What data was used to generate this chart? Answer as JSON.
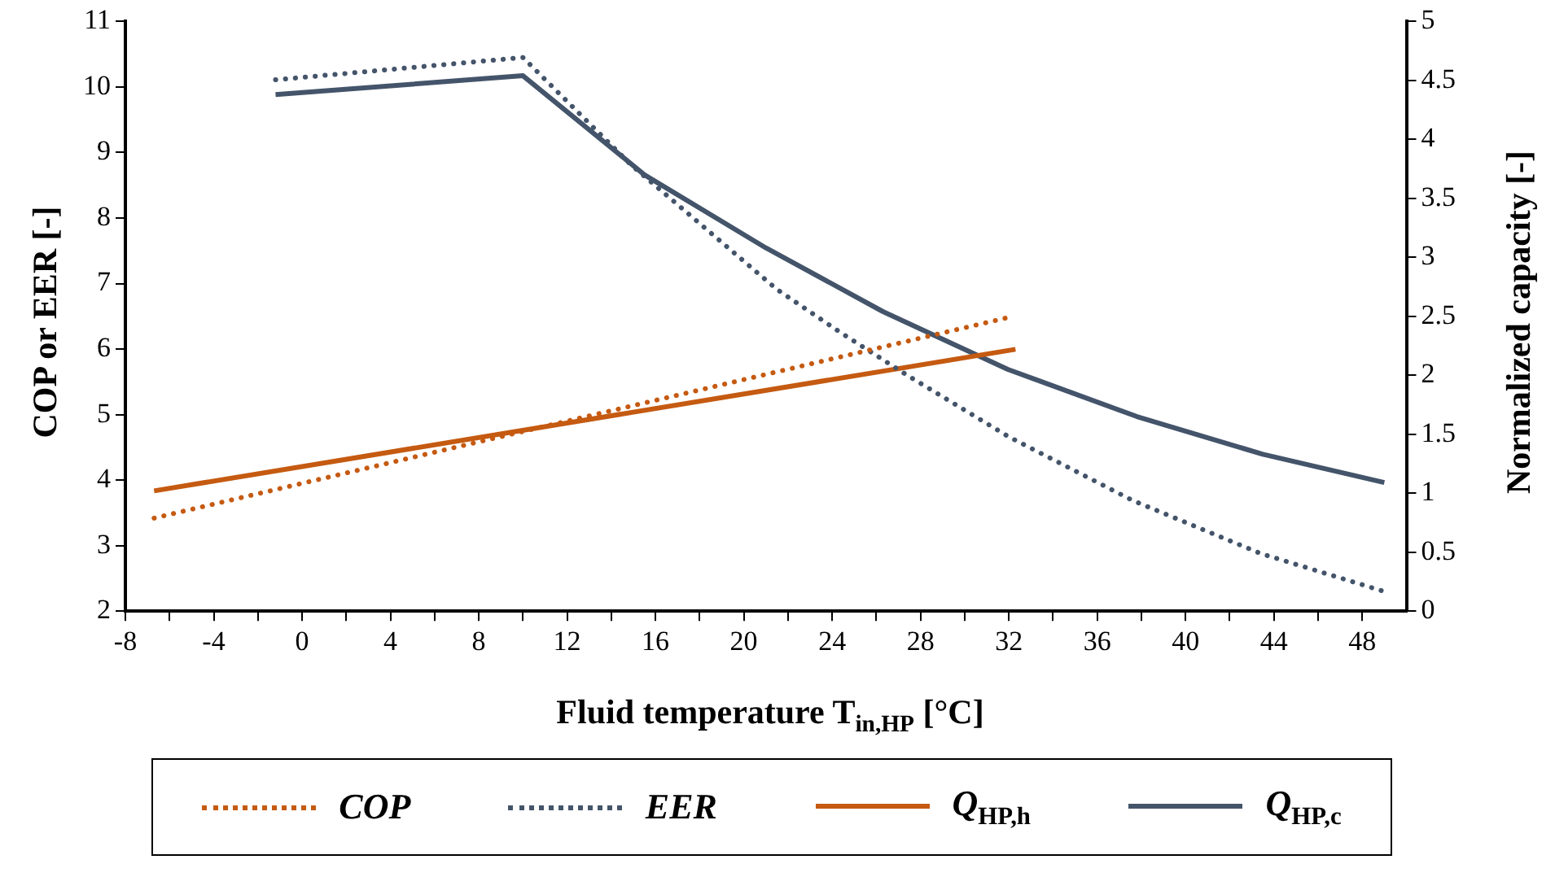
{
  "chart_data": {
    "type": "line",
    "xlabel": "Fluid temperature  T$_{in,HP}$  [°C]",
    "ylabel": "COP or EER [-]",
    "y2label": "Normalized capacity [-]",
    "xlim": [
      -8,
      50
    ],
    "xticks": [
      -8,
      {
        "value": -6,
        "label": null
      },
      -4,
      {
        "value": -2,
        "label": null
      },
      0,
      {
        "value": 2,
        "label": null
      },
      4,
      {
        "value": 6,
        "label": null
      },
      8,
      {
        "value": 10,
        "label": null
      },
      12,
      {
        "value": 14,
        "label": null
      },
      16,
      {
        "value": 18,
        "label": null
      },
      20,
      {
        "value": 22,
        "label": null
      },
      24,
      {
        "value": 26,
        "label": null
      },
      28,
      {
        "value": 30,
        "label": null
      },
      32,
      {
        "value": 34,
        "label": null
      },
      36,
      {
        "value": 38,
        "label": null
      },
      40,
      {
        "value": 42,
        "label": null
      },
      44,
      {
        "value": 46,
        "label": null
      },
      48
    ],
    "ylim": [
      2,
      11
    ],
    "yticks": [
      2,
      3,
      4,
      5,
      6,
      7,
      8,
      9,
      10,
      11
    ],
    "y2lim": [
      0,
      5
    ],
    "y2ticks": [
      0,
      0.5,
      1,
      1.5,
      2,
      2.5,
      3,
      3.5,
      4,
      4.5,
      5
    ],
    "grid": false,
    "legend": "bottom",
    "marker": "none",
    "series": [
      {
        "name": "COP",
        "color": "#c55a11",
        "line_style": "dotted",
        "x": [
          -6.7,
          32.2
        ],
        "values": [
          3.42,
          6.5
        ]
      },
      {
        "name": "EER",
        "color": "#44546a",
        "line_style": "dotted",
        "x": [
          -1.2,
          10,
          14.9,
          21.5,
          24.3,
          27.4,
          32,
          37.6,
          43.4,
          48.9
        ],
        "values": [
          10.11,
          10.45,
          8.81,
          6.91,
          6.27,
          5.6,
          4.66,
          3.69,
          2.88,
          2.31
        ]
      },
      {
        "name": "Q$_{HP,h}$",
        "color": "#c55a11",
        "line_style": "solid",
        "axis": "y2",
        "x": [
          -6.7,
          32.3
        ],
        "values": [
          1.02,
          2.22
        ]
      },
      {
        "name": "Q$_{HP,c}$",
        "color": "#44546a",
        "line_style": "solid",
        "axis": "y2",
        "x": [
          -1.2,
          10,
          15.5,
          21,
          26.3,
          31.95,
          37.8,
          43.5,
          49
        ],
        "values": [
          4.38,
          4.54,
          3.7,
          3.08,
          2.54,
          2.05,
          1.65,
          1.33,
          1.09
        ]
      }
    ]
  }
}
